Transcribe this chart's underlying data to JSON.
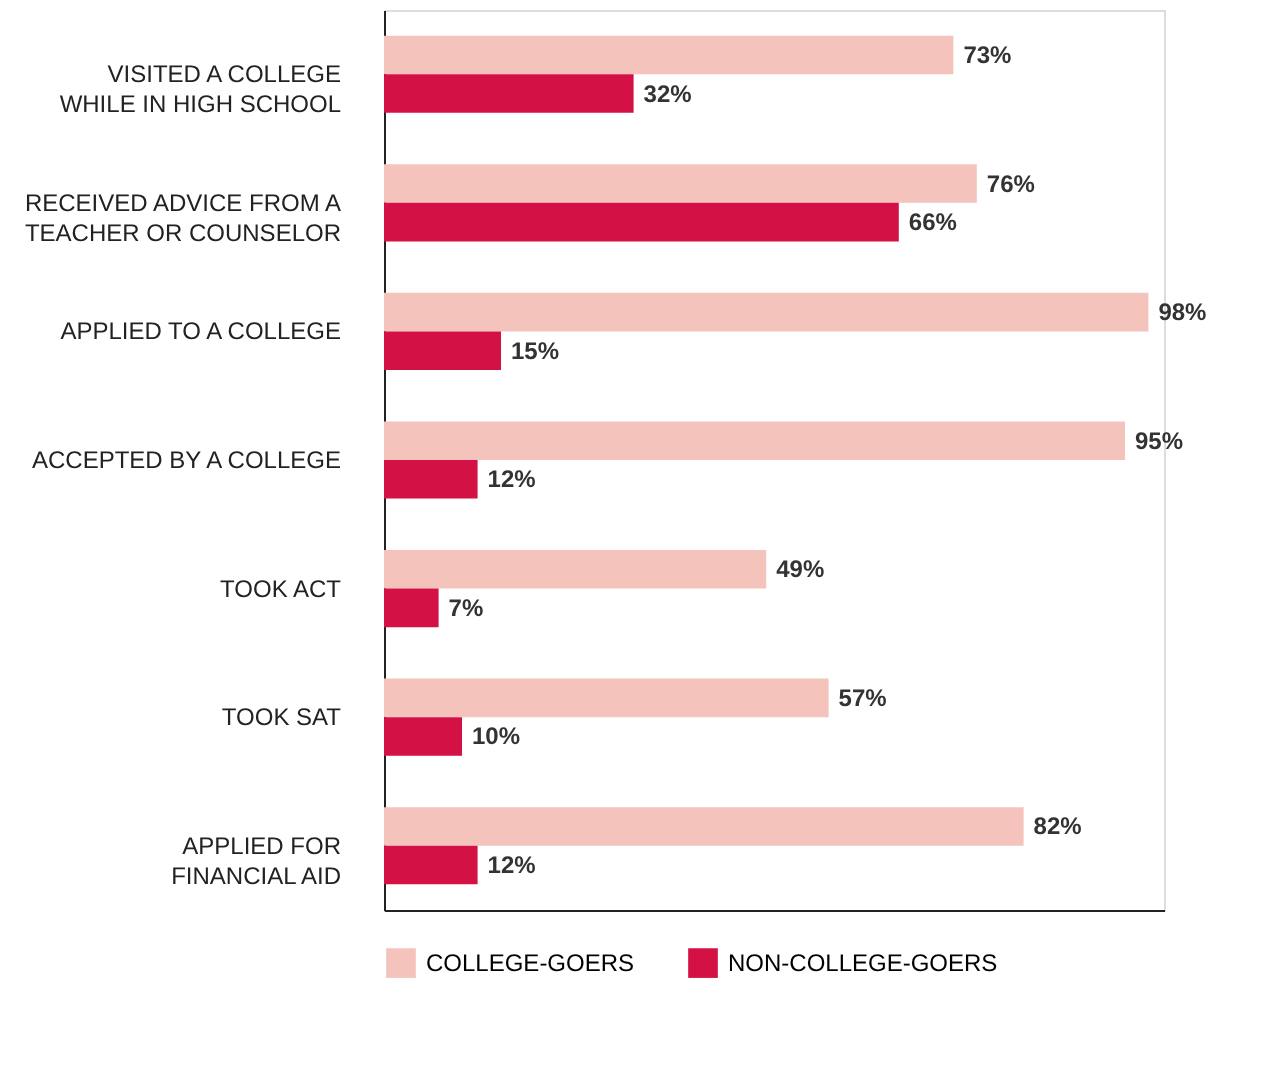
{
  "chart_data": {
    "type": "bar",
    "orientation": "horizontal",
    "categories": [
      "VISITED A COLLEGE\nWHILE IN HIGH SCHOOL",
      "RECEIVED ADVICE FROM A\nTEACHER OR COUNSELOR",
      "APPLIED TO A COLLEGE",
      "ACCEPTED BY A COLLEGE",
      "TOOK ACT",
      "TOOK SAT",
      "APPLIED FOR\nFINANCIAL AID"
    ],
    "series": [
      {
        "name": "COLLEGE-GOERS",
        "color": "#f4c3bb",
        "values": [
          73,
          76,
          98,
          95,
          49,
          57,
          82
        ],
        "value_labels": [
          "73%",
          "76%",
          "98%",
          "95%",
          "49%",
          "57%",
          "82%"
        ]
      },
      {
        "name": "NON-COLLEGE-GOERS",
        "color": "#d31145",
        "values": [
          32,
          66,
          15,
          12,
          7,
          10,
          12
        ],
        "value_labels": [
          "32%",
          "66%",
          "15%",
          "12%",
          "7%",
          "10%",
          "12%"
        ]
      }
    ],
    "xlim": [
      0,
      100
    ],
    "legend": "bottom",
    "tick_labels": "y"
  }
}
